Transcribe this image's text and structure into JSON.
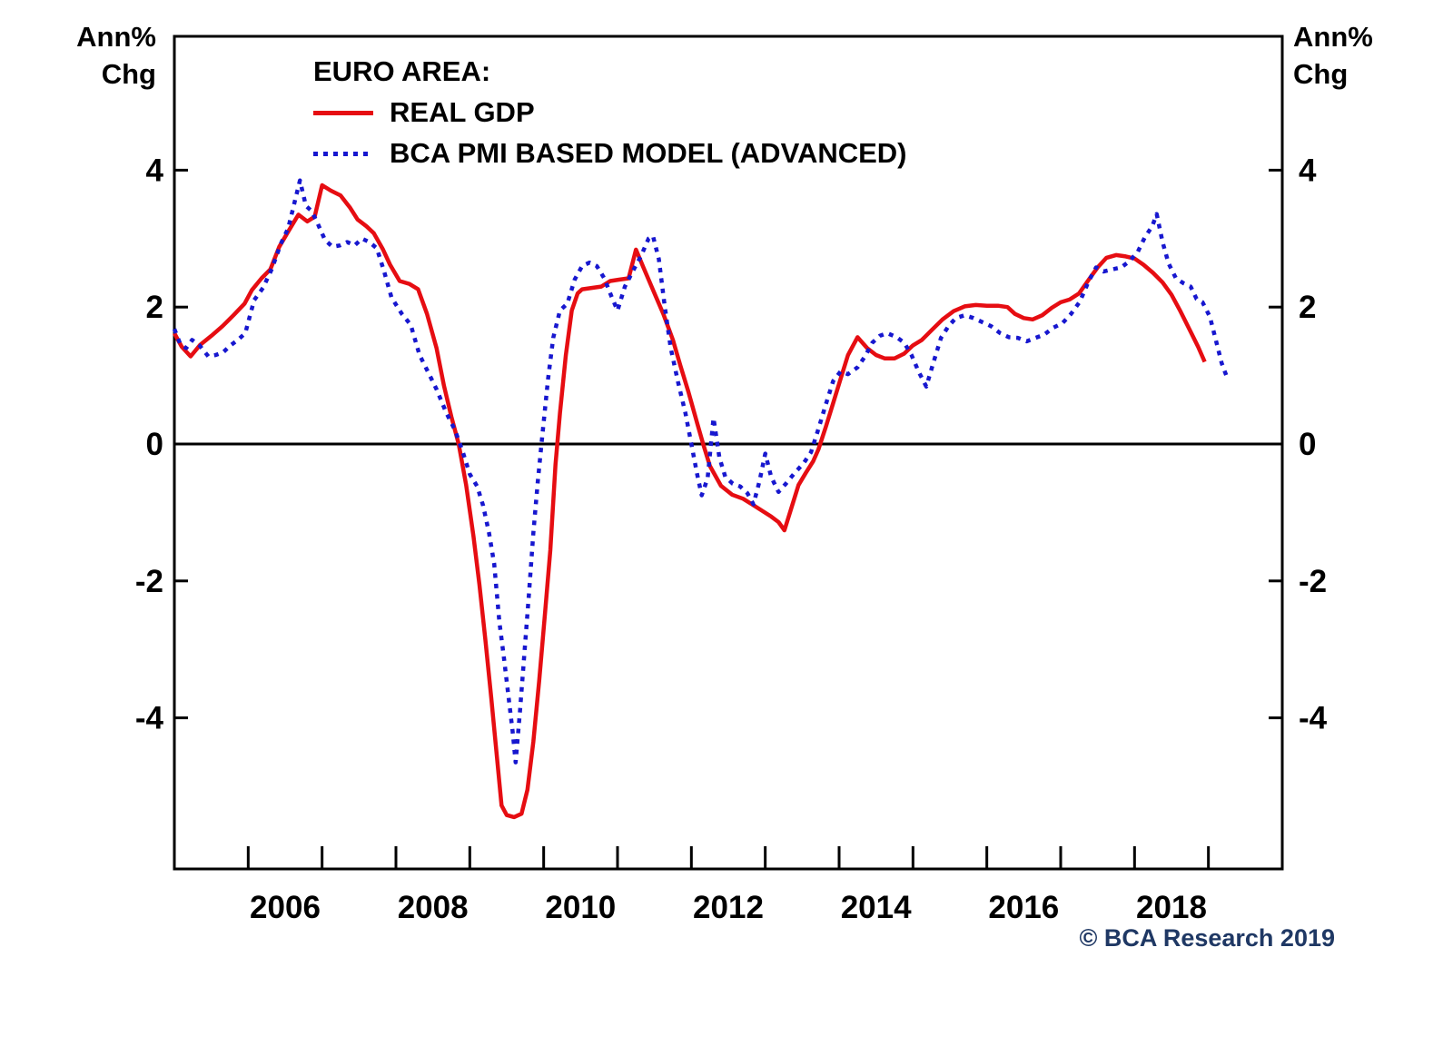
{
  "figure": {
    "left_axis_title": {
      "line1": "Ann%",
      "line2": "Chg"
    },
    "right_axis_title": {
      "line1": "Ann%",
      "line2": "Chg"
    },
    "legend": {
      "title": "EURO AREA:",
      "series": [
        {
          "label": "REAL GDP"
        },
        {
          "label": "BCA PMI BASED MODEL (ADVANCED)"
        }
      ]
    },
    "copyright": "© BCA Research 2019"
  },
  "colors": {
    "real_gdp": "#e60d12",
    "pmi_model": "#1717cf",
    "axis": "#000000",
    "copyright_text": "#1f3864"
  },
  "chart_data": {
    "type": "line",
    "title": "EURO AREA: REAL GDP vs BCA PMI BASED MODEL (ADVANCED)",
    "ylabel": "Ann% Chg",
    "x_range": [
      2005,
      2020
    ],
    "y_range": [
      -6.2,
      5.95
    ],
    "y_ticks": [
      4,
      2,
      0,
      -2,
      -4
    ],
    "x_ticks_years": [
      2006,
      2007,
      2008,
      2009,
      2010,
      2011,
      2012,
      2013,
      2014,
      2015,
      2016,
      2017,
      2018,
      2019
    ],
    "x_label_years": [
      2006,
      2008,
      2010,
      2012,
      2014,
      2016,
      2018
    ],
    "zero_line": true,
    "grid": false,
    "legend_position": "top-left-inside",
    "series": [
      {
        "name": "REAL GDP",
        "style": "solid",
        "color_key": "real_gdp",
        "points": [
          [
            2005.0,
            1.62
          ],
          [
            2005.1,
            1.42
          ],
          [
            2005.22,
            1.28
          ],
          [
            2005.35,
            1.45
          ],
          [
            2005.5,
            1.58
          ],
          [
            2005.65,
            1.72
          ],
          [
            2005.8,
            1.88
          ],
          [
            2005.95,
            2.05
          ],
          [
            2006.05,
            2.25
          ],
          [
            2006.18,
            2.42
          ],
          [
            2006.3,
            2.55
          ],
          [
            2006.42,
            2.88
          ],
          [
            2006.55,
            3.12
          ],
          [
            2006.68,
            3.35
          ],
          [
            2006.8,
            3.25
          ],
          [
            2006.9,
            3.32
          ],
          [
            2007.0,
            3.78
          ],
          [
            2007.12,
            3.7
          ],
          [
            2007.25,
            3.63
          ],
          [
            2007.38,
            3.45
          ],
          [
            2007.48,
            3.28
          ],
          [
            2007.6,
            3.18
          ],
          [
            2007.7,
            3.08
          ],
          [
            2007.82,
            2.85
          ],
          [
            2007.92,
            2.62
          ],
          [
            2008.05,
            2.38
          ],
          [
            2008.18,
            2.34
          ],
          [
            2008.3,
            2.26
          ],
          [
            2008.42,
            1.9
          ],
          [
            2008.55,
            1.4
          ],
          [
            2008.65,
            0.85
          ],
          [
            2008.75,
            0.4
          ],
          [
            2008.85,
            0.0
          ],
          [
            2008.95,
            -0.6
          ],
          [
            2009.05,
            -1.35
          ],
          [
            2009.13,
            -2.05
          ],
          [
            2009.21,
            -2.85
          ],
          [
            2009.29,
            -3.7
          ],
          [
            2009.37,
            -4.6
          ],
          [
            2009.43,
            -5.28
          ],
          [
            2009.5,
            -5.42
          ],
          [
            2009.6,
            -5.45
          ],
          [
            2009.7,
            -5.4
          ],
          [
            2009.78,
            -5.05
          ],
          [
            2009.86,
            -4.35
          ],
          [
            2009.94,
            -3.45
          ],
          [
            2010.02,
            -2.45
          ],
          [
            2010.09,
            -1.55
          ],
          [
            2010.16,
            -0.3
          ],
          [
            2010.22,
            0.45
          ],
          [
            2010.3,
            1.3
          ],
          [
            2010.38,
            1.95
          ],
          [
            2010.46,
            2.2
          ],
          [
            2010.52,
            2.26
          ],
          [
            2010.65,
            2.28
          ],
          [
            2010.78,
            2.3
          ],
          [
            2010.9,
            2.38
          ],
          [
            2011.02,
            2.4
          ],
          [
            2011.15,
            2.42
          ],
          [
            2011.25,
            2.84
          ],
          [
            2011.35,
            2.58
          ],
          [
            2011.5,
            2.2
          ],
          [
            2011.62,
            1.9
          ],
          [
            2011.75,
            1.52
          ],
          [
            2011.85,
            1.15
          ],
          [
            2011.96,
            0.76
          ],
          [
            2012.08,
            0.3
          ],
          [
            2012.16,
            0.0
          ],
          [
            2012.25,
            -0.32
          ],
          [
            2012.4,
            -0.61
          ],
          [
            2012.55,
            -0.74
          ],
          [
            2012.7,
            -0.8
          ],
          [
            2012.82,
            -0.88
          ],
          [
            2012.95,
            -0.97
          ],
          [
            2013.08,
            -1.06
          ],
          [
            2013.18,
            -1.14
          ],
          [
            2013.26,
            -1.26
          ],
          [
            2013.35,
            -0.95
          ],
          [
            2013.45,
            -0.6
          ],
          [
            2013.55,
            -0.42
          ],
          [
            2013.65,
            -0.25
          ],
          [
            2013.72,
            -0.08
          ],
          [
            2013.82,
            0.25
          ],
          [
            2013.92,
            0.6
          ],
          [
            2014.02,
            0.95
          ],
          [
            2014.12,
            1.3
          ],
          [
            2014.25,
            1.56
          ],
          [
            2014.38,
            1.4
          ],
          [
            2014.5,
            1.3
          ],
          [
            2014.62,
            1.25
          ],
          [
            2014.75,
            1.25
          ],
          [
            2014.88,
            1.32
          ],
          [
            2015.0,
            1.44
          ],
          [
            2015.12,
            1.52
          ],
          [
            2015.25,
            1.66
          ],
          [
            2015.4,
            1.82
          ],
          [
            2015.55,
            1.94
          ],
          [
            2015.7,
            2.01
          ],
          [
            2015.85,
            2.03
          ],
          [
            2016.0,
            2.02
          ],
          [
            2016.15,
            2.02
          ],
          [
            2016.28,
            2.0
          ],
          [
            2016.38,
            1.9
          ],
          [
            2016.5,
            1.84
          ],
          [
            2016.62,
            1.82
          ],
          [
            2016.75,
            1.88
          ],
          [
            2016.88,
            1.99
          ],
          [
            2017.0,
            2.07
          ],
          [
            2017.12,
            2.11
          ],
          [
            2017.25,
            2.2
          ],
          [
            2017.38,
            2.4
          ],
          [
            2017.5,
            2.58
          ],
          [
            2017.62,
            2.72
          ],
          [
            2017.75,
            2.76
          ],
          [
            2017.88,
            2.74
          ],
          [
            2018.0,
            2.71
          ],
          [
            2018.12,
            2.62
          ],
          [
            2018.25,
            2.5
          ],
          [
            2018.38,
            2.36
          ],
          [
            2018.5,
            2.18
          ],
          [
            2018.62,
            1.94
          ],
          [
            2018.75,
            1.66
          ],
          [
            2018.86,
            1.42
          ],
          [
            2018.95,
            1.2
          ]
        ]
      },
      {
        "name": "BCA PMI BASED MODEL (ADVANCED)",
        "style": "dashed",
        "color_key": "pmi_model",
        "points": [
          [
            2005.0,
            1.68
          ],
          [
            2005.08,
            1.46
          ],
          [
            2005.16,
            1.4
          ],
          [
            2005.24,
            1.52
          ],
          [
            2005.34,
            1.44
          ],
          [
            2005.46,
            1.28
          ],
          [
            2005.56,
            1.3
          ],
          [
            2005.66,
            1.34
          ],
          [
            2005.76,
            1.44
          ],
          [
            2005.86,
            1.52
          ],
          [
            2005.96,
            1.62
          ],
          [
            2006.08,
            2.1
          ],
          [
            2006.2,
            2.28
          ],
          [
            2006.32,
            2.56
          ],
          [
            2006.44,
            2.92
          ],
          [
            2006.54,
            3.15
          ],
          [
            2006.62,
            3.5
          ],
          [
            2006.7,
            3.85
          ],
          [
            2006.78,
            3.48
          ],
          [
            2006.86,
            3.4
          ],
          [
            2006.94,
            3.22
          ],
          [
            2007.04,
            2.98
          ],
          [
            2007.14,
            2.88
          ],
          [
            2007.24,
            2.9
          ],
          [
            2007.34,
            2.95
          ],
          [
            2007.44,
            2.9
          ],
          [
            2007.54,
            3.0
          ],
          [
            2007.64,
            2.95
          ],
          [
            2007.74,
            2.86
          ],
          [
            2007.84,
            2.52
          ],
          [
            2007.94,
            2.14
          ],
          [
            2008.08,
            1.9
          ],
          [
            2008.2,
            1.74
          ],
          [
            2008.32,
            1.3
          ],
          [
            2008.44,
            1.04
          ],
          [
            2008.55,
            0.8
          ],
          [
            2008.68,
            0.46
          ],
          [
            2008.8,
            0.2
          ],
          [
            2008.9,
            -0.1
          ],
          [
            2009.0,
            -0.44
          ],
          [
            2009.1,
            -0.62
          ],
          [
            2009.18,
            -0.9
          ],
          [
            2009.26,
            -1.3
          ],
          [
            2009.33,
            -1.75
          ],
          [
            2009.4,
            -2.6
          ],
          [
            2009.46,
            -3.1
          ],
          [
            2009.52,
            -3.65
          ],
          [
            2009.58,
            -4.2
          ],
          [
            2009.62,
            -4.65
          ],
          [
            2009.68,
            -3.9
          ],
          [
            2009.74,
            -3.05
          ],
          [
            2009.8,
            -2.2
          ],
          [
            2009.86,
            -1.3
          ],
          [
            2009.92,
            -0.55
          ],
          [
            2009.98,
            0.1
          ],
          [
            2010.06,
            0.95
          ],
          [
            2010.13,
            1.55
          ],
          [
            2010.22,
            1.95
          ],
          [
            2010.32,
            2.05
          ],
          [
            2010.42,
            2.4
          ],
          [
            2010.52,
            2.6
          ],
          [
            2010.62,
            2.65
          ],
          [
            2010.72,
            2.6
          ],
          [
            2010.82,
            2.42
          ],
          [
            2010.92,
            2.15
          ],
          [
            2011.0,
            1.95
          ],
          [
            2011.1,
            2.3
          ],
          [
            2011.22,
            2.55
          ],
          [
            2011.32,
            2.75
          ],
          [
            2011.42,
            3.0
          ],
          [
            2011.48,
            3.04
          ],
          [
            2011.56,
            2.7
          ],
          [
            2011.64,
            2.0
          ],
          [
            2011.72,
            1.4
          ],
          [
            2011.82,
            0.9
          ],
          [
            2011.92,
            0.45
          ],
          [
            2012.0,
            0.0
          ],
          [
            2012.08,
            -0.45
          ],
          [
            2012.14,
            -0.75
          ],
          [
            2012.22,
            -0.5
          ],
          [
            2012.3,
            0.38
          ],
          [
            2012.38,
            -0.2
          ],
          [
            2012.46,
            -0.48
          ],
          [
            2012.56,
            -0.58
          ],
          [
            2012.66,
            -0.62
          ],
          [
            2012.76,
            -0.72
          ],
          [
            2012.84,
            -0.88
          ],
          [
            2012.92,
            -0.55
          ],
          [
            2013.0,
            -0.14
          ],
          [
            2013.08,
            -0.48
          ],
          [
            2013.18,
            -0.7
          ],
          [
            2013.28,
            -0.58
          ],
          [
            2013.4,
            -0.42
          ],
          [
            2013.52,
            -0.28
          ],
          [
            2013.62,
            -0.12
          ],
          [
            2013.72,
            0.22
          ],
          [
            2013.82,
            0.58
          ],
          [
            2013.92,
            0.92
          ],
          [
            2014.02,
            1.06
          ],
          [
            2014.12,
            1.02
          ],
          [
            2014.25,
            1.12
          ],
          [
            2014.35,
            1.28
          ],
          [
            2014.45,
            1.48
          ],
          [
            2014.55,
            1.58
          ],
          [
            2014.65,
            1.62
          ],
          [
            2014.78,
            1.56
          ],
          [
            2014.88,
            1.48
          ],
          [
            2014.98,
            1.3
          ],
          [
            2015.08,
            1.05
          ],
          [
            2015.18,
            0.84
          ],
          [
            2015.28,
            1.2
          ],
          [
            2015.38,
            1.55
          ],
          [
            2015.48,
            1.72
          ],
          [
            2015.58,
            1.84
          ],
          [
            2015.7,
            1.88
          ],
          [
            2015.82,
            1.84
          ],
          [
            2015.94,
            1.78
          ],
          [
            2016.06,
            1.72
          ],
          [
            2016.18,
            1.62
          ],
          [
            2016.3,
            1.56
          ],
          [
            2016.42,
            1.55
          ],
          [
            2016.54,
            1.5
          ],
          [
            2016.66,
            1.55
          ],
          [
            2016.78,
            1.6
          ],
          [
            2016.9,
            1.7
          ],
          [
            2017.02,
            1.76
          ],
          [
            2017.14,
            1.9
          ],
          [
            2017.26,
            2.08
          ],
          [
            2017.38,
            2.38
          ],
          [
            2017.48,
            2.58
          ],
          [
            2017.58,
            2.52
          ],
          [
            2017.7,
            2.55
          ],
          [
            2017.82,
            2.58
          ],
          [
            2017.92,
            2.66
          ],
          [
            2018.04,
            2.8
          ],
          [
            2018.14,
            3.02
          ],
          [
            2018.24,
            3.18
          ],
          [
            2018.3,
            3.36
          ],
          [
            2018.38,
            2.95
          ],
          [
            2018.46,
            2.64
          ],
          [
            2018.56,
            2.42
          ],
          [
            2018.66,
            2.35
          ],
          [
            2018.76,
            2.3
          ],
          [
            2018.84,
            2.12
          ],
          [
            2018.92,
            2.07
          ],
          [
            2019.02,
            1.86
          ],
          [
            2019.1,
            1.52
          ],
          [
            2019.18,
            1.18
          ],
          [
            2019.26,
            0.95
          ]
        ]
      }
    ]
  }
}
